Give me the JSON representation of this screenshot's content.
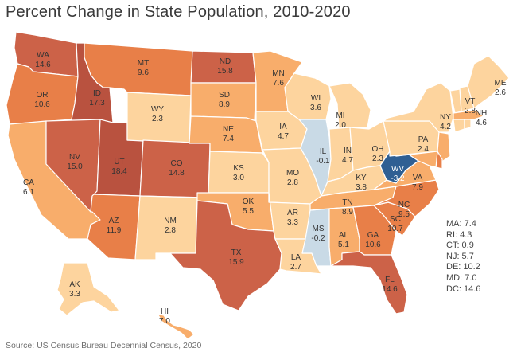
{
  "title": "Percent Change in State Population, 2010-2020",
  "source": "Source: US Census Bureau Decennial Census, 2020",
  "colors": {
    "decline": "#2f5f93",
    "slight_decline": "#c9dae6",
    "low": "#fdd49e",
    "mid": "#f8ad6b",
    "high": "#e87f48",
    "very_high": "#cc6248",
    "highest": "#b9523f"
  },
  "states": [
    {
      "abbr": "WA",
      "value": "14.6"
    },
    {
      "abbr": "OR",
      "value": "10.6"
    },
    {
      "abbr": "CA",
      "value": "6.1"
    },
    {
      "abbr": "ID",
      "value": "17.3"
    },
    {
      "abbr": "NV",
      "value": "15.0"
    },
    {
      "abbr": "UT",
      "value": "18.4"
    },
    {
      "abbr": "AZ",
      "value": "11.9"
    },
    {
      "abbr": "MT",
      "value": "9.6"
    },
    {
      "abbr": "WY",
      "value": "2.3"
    },
    {
      "abbr": "CO",
      "value": "14.8"
    },
    {
      "abbr": "NM",
      "value": "2.8"
    },
    {
      "abbr": "ND",
      "value": "15.8"
    },
    {
      "abbr": "SD",
      "value": "8.9"
    },
    {
      "abbr": "NE",
      "value": "7.4"
    },
    {
      "abbr": "KS",
      "value": "3.0"
    },
    {
      "abbr": "OK",
      "value": "5.5"
    },
    {
      "abbr": "TX",
      "value": "15.9"
    },
    {
      "abbr": "MN",
      "value": "7.6"
    },
    {
      "abbr": "IA",
      "value": "4.7"
    },
    {
      "abbr": "MO",
      "value": "2.8"
    },
    {
      "abbr": "AR",
      "value": "3.3"
    },
    {
      "abbr": "LA",
      "value": "2.7"
    },
    {
      "abbr": "WI",
      "value": "3.6"
    },
    {
      "abbr": "IL",
      "value": "-0.1"
    },
    {
      "abbr": "MS",
      "value": "-0.2"
    },
    {
      "abbr": "MI",
      "value": "2.0"
    },
    {
      "abbr": "IN",
      "value": "4.7"
    },
    {
      "abbr": "KY",
      "value": "3.8"
    },
    {
      "abbr": "TN",
      "value": "8.9"
    },
    {
      "abbr": "AL",
      "value": "5.1"
    },
    {
      "abbr": "OH",
      "value": "2.3"
    },
    {
      "abbr": "WV",
      "value": "-3.2"
    },
    {
      "abbr": "GA",
      "value": "10.6"
    },
    {
      "abbr": "FL",
      "value": "14.6"
    },
    {
      "abbr": "SC",
      "value": "10.7"
    },
    {
      "abbr": "NC",
      "value": "9.5"
    },
    {
      "abbr": "VA",
      "value": "7.9"
    },
    {
      "abbr": "PA",
      "value": "2.4"
    },
    {
      "abbr": "NY",
      "value": "4.2"
    },
    {
      "abbr": "VT",
      "value": "2.8"
    },
    {
      "abbr": "NH",
      "value": "4.6"
    },
    {
      "abbr": "ME",
      "value": "2.6"
    },
    {
      "abbr": "AK",
      "value": "3.3"
    },
    {
      "abbr": "HI",
      "value": "7.0"
    }
  ],
  "small_states": [
    {
      "abbr": "MA",
      "value": "7.4",
      "text": "MA: 7.4"
    },
    {
      "abbr": "RI",
      "value": "4.3",
      "text": "RI: 4.3"
    },
    {
      "abbr": "CT",
      "value": "0.9",
      "text": "CT: 0.9"
    },
    {
      "abbr": "NJ",
      "value": "5.7",
      "text": "NJ: 5.7"
    },
    {
      "abbr": "DE",
      "value": "10.2",
      "text": "DE: 10.2"
    },
    {
      "abbr": "MD",
      "value": "7.0",
      "text": "MD: 7.0"
    },
    {
      "abbr": "DC",
      "value": "14.6",
      "text": "DC: 14.6"
    }
  ]
}
